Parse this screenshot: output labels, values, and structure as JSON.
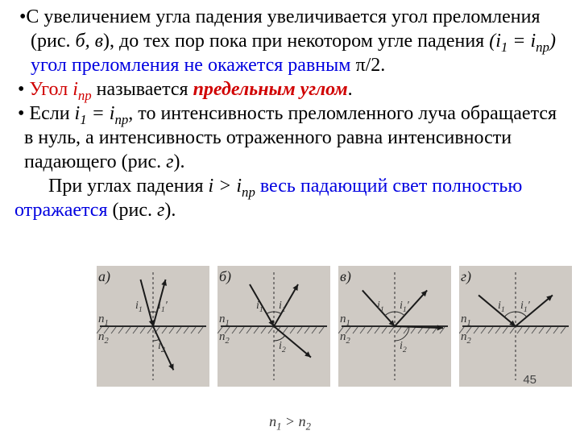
{
  "text": {
    "p1a": "С увеличением угла падения увеличивается угол преломления (рис.  ",
    "p1b_ital": "б, в",
    "p1c": "), до тех пор пока при некотором угле падения ",
    "p1d_ital": "(i",
    "p1d_sub": "1",
    "p1e_ital": " = i",
    "p1e_sub": "пр",
    "p1f_ital": ")",
    "p1g_blue": " угол преломления не окажется равным  ",
    "p1h": "π/2.",
    "p2a_red": " Угол ",
    "p2b_redital": "i",
    "p2b_sub": "пр",
    "p2c_red": " называется ",
    "p2d_redboldital": "предельным углом",
    "p2e": ".",
    "p3a": " Если ",
    "p3b_ital": "i",
    "p3b_sub": "1",
    "p3c_ital": " = i",
    "p3c_sub": "пр",
    "p3d": ", то интенсивность преломленного луча обращается в нуль, а интенсивность отраженного равна интенсивности падающего (рис. ",
    "p3e_ital": "г",
    "p3f": ").",
    "p4a": "При углах падения ",
    "p4b_ital": "i > i",
    "p4b_sub": "пр",
    "p4c_blue": " весь падающий свет полностью отражается ",
    "p4d": " (рис. ",
    "p4e_ital": "г",
    "p4f": ")."
  },
  "figure": {
    "panel_labels": [
      "а)",
      "б)",
      "в)",
      "г)"
    ],
    "n1_label": "n",
    "n1_sub": "1",
    "n2_label": "n",
    "n2_sub": "2",
    "i1": "i",
    "i1_sub": "1",
    "i1p": "i",
    "i1p_sub": "1",
    "i1p_prime": "′",
    "i2": "i",
    "i2_sub": "2",
    "bottom_note_a": "n",
    "bottom_note_b": "1",
    "bottom_note_c": " > n",
    "bottom_note_d": "2",
    "panels": [
      {
        "inc_angle": 15,
        "refl_angle": 15,
        "refr_angle": 25,
        "show_refr": true
      },
      {
        "inc_angle": 30,
        "refl_angle": 30,
        "refr_angle": 50,
        "show_refr": true
      },
      {
        "inc_angle": 42,
        "refl_angle": 42,
        "refr_angle": 88,
        "show_refr": true
      },
      {
        "inc_angle": 50,
        "refl_angle": 50,
        "refr_angle": 0,
        "show_refr": false
      }
    ],
    "colors": {
      "bg": "#cfcac4",
      "line": "#2b2b2b",
      "hatch": "#555555",
      "arrow": "#1a1a1a"
    }
  },
  "page_number": "45"
}
